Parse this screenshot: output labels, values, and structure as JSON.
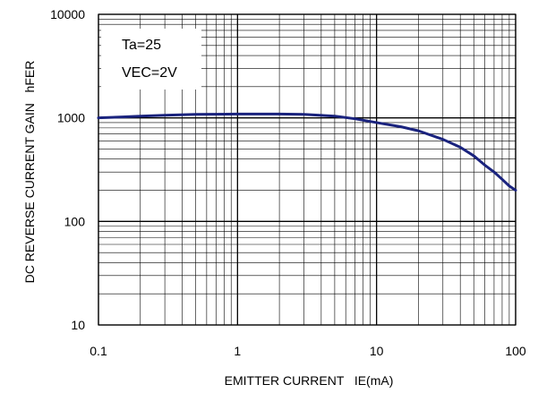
{
  "chart_data": {
    "type": "line",
    "xlabel": "EMITTER CURRENT   IE(mA)",
    "ylabel": "DC REVERSE CURRENT GAIN   hFER",
    "x_scale": "log",
    "y_scale": "log",
    "xlim": [
      0.1,
      100
    ],
    "ylim": [
      10,
      10000
    ],
    "x_ticks": [
      {
        "value": 0.1,
        "label": "0.1"
      },
      {
        "value": 1,
        "label": "1"
      },
      {
        "value": 10,
        "label": "10"
      },
      {
        "value": 100,
        "label": "100"
      }
    ],
    "y_ticks": [
      {
        "value": 10,
        "label": "10"
      },
      {
        "value": 100,
        "label": "100"
      },
      {
        "value": 1000,
        "label": "1000"
      },
      {
        "value": 10000,
        "label": "10000"
      }
    ],
    "grid": true,
    "annotations": [
      "Ta=25",
      "VEC=2V"
    ],
    "line_color": "#1a237e",
    "series": [
      {
        "x": [
          0.1,
          0.15,
          0.2,
          0.3,
          0.5,
          1,
          2,
          3,
          5,
          7,
          10,
          15,
          20,
          30,
          40,
          50,
          60,
          70,
          80,
          90,
          100
        ],
        "y": [
          1000,
          1020,
          1040,
          1060,
          1080,
          1090,
          1090,
          1080,
          1040,
          980,
          900,
          820,
          750,
          620,
          520,
          430,
          350,
          300,
          255,
          220,
          200
        ]
      }
    ]
  }
}
